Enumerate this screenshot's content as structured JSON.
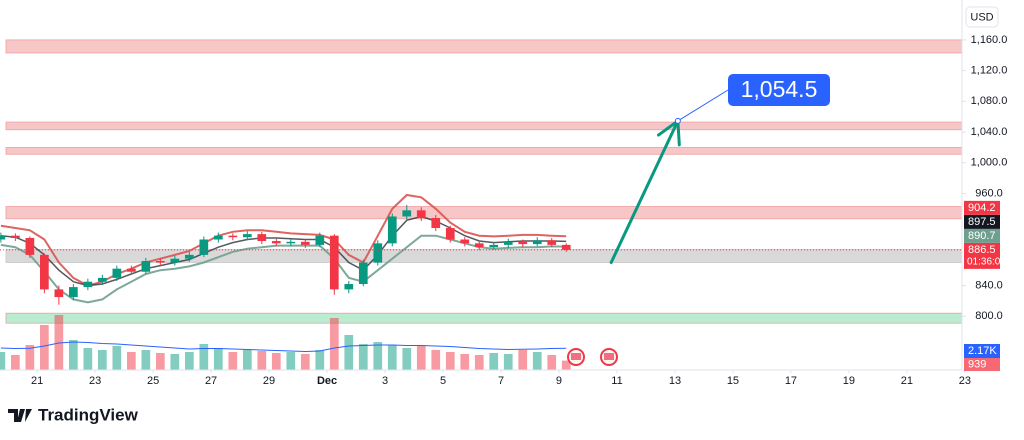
{
  "chart_data": {
    "type": "candlestick",
    "currency": "USD",
    "countdown": "01:36:08",
    "xlim": [
      19.72,
      52.9
    ],
    "ylim": [
      730,
      1212
    ],
    "volume_ylim": [
      0,
      7000
    ],
    "xticks": [
      21,
      23,
      25,
      27,
      29,
      {
        "value": 31,
        "label": "Dec"
      },
      {
        "value": 33,
        "label": "3"
      },
      {
        "value": 35,
        "label": "5"
      },
      {
        "value": 37,
        "label": "7"
      },
      {
        "value": 39,
        "label": "9"
      },
      {
        "value": 41,
        "label": "11"
      },
      {
        "value": 43,
        "label": "13"
      },
      {
        "value": 45,
        "label": "15"
      },
      {
        "value": 47,
        "label": "17"
      },
      {
        "value": 49,
        "label": "19"
      },
      {
        "value": 51,
        "label": "21"
      },
      {
        "value": 53,
        "label": "23"
      }
    ],
    "yticks": [
      {
        "value": 1160,
        "label": "1,160.0"
      },
      {
        "value": 1120,
        "label": "1,120.0"
      },
      {
        "value": 1080,
        "label": "1,080.0"
      },
      {
        "value": 1040,
        "label": "1,040.0"
      },
      {
        "value": 1000,
        "label": "1,000.0"
      },
      {
        "value": 960,
        "label": "960.0"
      },
      {
        "value": 840,
        "label": "840.0"
      },
      {
        "value": 800,
        "label": "800.0"
      }
    ],
    "up_color": "#089981",
    "down_color": "#f23645",
    "x": [
      19.75,
      20.25,
      20.75,
      21.25,
      21.75,
      22.25,
      22.75,
      23.25,
      23.75,
      24.25,
      24.75,
      25.25,
      25.75,
      26.25,
      26.75,
      27.25,
      27.75,
      28.25,
      28.75,
      29.25,
      29.75,
      30.25,
      30.75,
      31.25,
      31.75,
      32.25,
      32.75,
      33.25,
      33.75,
      34.25,
      34.75,
      35.25,
      35.75,
      36.25,
      36.75,
      37.25,
      37.75,
      38.25,
      38.75,
      39.25
    ],
    "open": [
      900,
      905,
      902,
      880,
      835,
      825,
      838,
      845,
      850,
      862,
      858,
      872,
      870,
      875,
      880,
      900,
      905,
      903,
      907,
      898,
      895,
      897,
      893,
      905,
      835,
      842,
      870,
      895,
      930,
      938,
      928,
      915,
      900,
      895,
      890,
      893,
      897,
      894,
      899,
      893
    ],
    "high": [
      909,
      908,
      904,
      882,
      840,
      842,
      849,
      854,
      866,
      866,
      876,
      876,
      879,
      884,
      904,
      909,
      908,
      911,
      910,
      901,
      901,
      900,
      909,
      907,
      846,
      874,
      899,
      934,
      945,
      942,
      932,
      918,
      903,
      898,
      897,
      901,
      900,
      903,
      902,
      895
    ],
    "low": [
      896,
      898,
      876,
      830,
      815,
      821,
      834,
      841,
      846,
      854,
      855,
      866,
      866,
      871,
      877,
      896,
      899,
      899,
      894,
      891,
      891,
      889,
      890,
      828,
      830,
      839,
      866,
      891,
      926,
      924,
      911,
      896,
      891,
      886,
      887,
      889,
      890,
      891,
      890,
      884
    ],
    "close": [
      905,
      902,
      880,
      835,
      825,
      838,
      845,
      850,
      862,
      858,
      872,
      870,
      875,
      880,
      900,
      905,
      903,
      907,
      898,
      895,
      897,
      893,
      905,
      835,
      842,
      870,
      895,
      930,
      938,
      928,
      915,
      900,
      895,
      890,
      893,
      897,
      894,
      899,
      893,
      886.5
    ],
    "series": [
      {
        "color": "#d9534f",
        "label_color": "#f23645",
        "values": [
          918,
          915,
          912,
          900,
          870,
          850,
          840,
          845,
          855,
          862,
          870,
          875,
          880,
          885,
          895,
          905,
          910,
          912,
          912,
          910,
          908,
          907,
          906,
          900,
          880,
          870,
          905,
          940,
          958,
          955,
          940,
          922,
          910,
          905,
          904,
          905,
          906,
          906,
          905,
          904.2
        ]
      },
      {
        "color": "#2a2e39",
        "label_color": "#131722",
        "values": [
          905,
          903,
          895,
          880,
          860,
          845,
          840,
          842,
          848,
          855,
          862,
          866,
          870,
          874,
          882,
          890,
          896,
          900,
          902,
          902,
          901,
          900,
          900,
          890,
          870,
          860,
          880,
          905,
          925,
          930,
          924,
          915,
          905,
          898,
          896,
          897,
          898,
          898,
          898,
          897.5
        ]
      },
      {
        "color": "#6f9f8f",
        "label_color": "#6f9f8f",
        "values": [
          893,
          890,
          880,
          858,
          835,
          822,
          818,
          822,
          835,
          845,
          855,
          860,
          862,
          865,
          870,
          877,
          884,
          888,
          890,
          892,
          892,
          892,
          892,
          875,
          850,
          845,
          860,
          875,
          890,
          905,
          905,
          900,
          895,
          890,
          888,
          889,
          890,
          890,
          891,
          890.7
        ]
      }
    ],
    "volume": [
      1800,
      1500,
      2500,
      4500,
      5500,
      3000,
      2200,
      2000,
      2400,
      1800,
      2000,
      1700,
      1600,
      1800,
      2600,
      2200,
      1800,
      2000,
      1900,
      1700,
      1800,
      1600,
      2000,
      5200,
      3500,
      2600,
      2800,
      2500,
      2200,
      2400,
      2000,
      1800,
      1600,
      1500,
      1700,
      1600,
      2000,
      1800,
      1500,
      939
    ],
    "volume_ma": {
      "color": "#2962ff",
      "values": [
        2200,
        2150,
        2180,
        2400,
        2700,
        2800,
        2750,
        2650,
        2600,
        2500,
        2400,
        2300,
        2200,
        2100,
        2150,
        2150,
        2100,
        2050,
        2000,
        1950,
        1900,
        1850,
        1900,
        2200,
        2400,
        2450,
        2500,
        2500,
        2450,
        2450,
        2400,
        2350,
        2250,
        2150,
        2100,
        2050,
        2080,
        2100,
        2150,
        2170
      ],
      "value_labels": [
        null,
        null,
        null,
        null,
        null,
        null,
        null,
        null,
        null,
        null,
        null,
        null,
        null,
        null,
        null,
        null,
        null,
        null,
        null,
        null,
        null,
        null,
        null,
        null,
        null,
        null,
        null,
        null,
        null,
        null,
        null,
        null,
        null,
        null,
        null,
        null,
        null,
        null,
        null,
        "2.17K"
      ]
    },
    "zones": [
      {
        "from": 1143,
        "to": 1160,
        "color": "#f7c6c7"
      },
      {
        "from": 1043,
        "to": 1053,
        "color": "#f7c6c7"
      },
      {
        "from": 1011,
        "to": 1020,
        "color": "#f7c6c7"
      },
      {
        "from": 927,
        "to": 943,
        "color": "#f7c6c7"
      },
      {
        "from": 870,
        "to": 887,
        "color": "#d9d9d9"
      },
      {
        "from": 791,
        "to": 804,
        "color": "#b9ecd0"
      }
    ],
    "arrow": {
      "x": [
        40.8,
        43.1
      ],
      "y": [
        870,
        1054.5
      ],
      "color": "#089981"
    },
    "target": {
      "value": 1054.5,
      "label": "1,054.5",
      "color": "#2962ff"
    }
  },
  "brand": "TradingView"
}
